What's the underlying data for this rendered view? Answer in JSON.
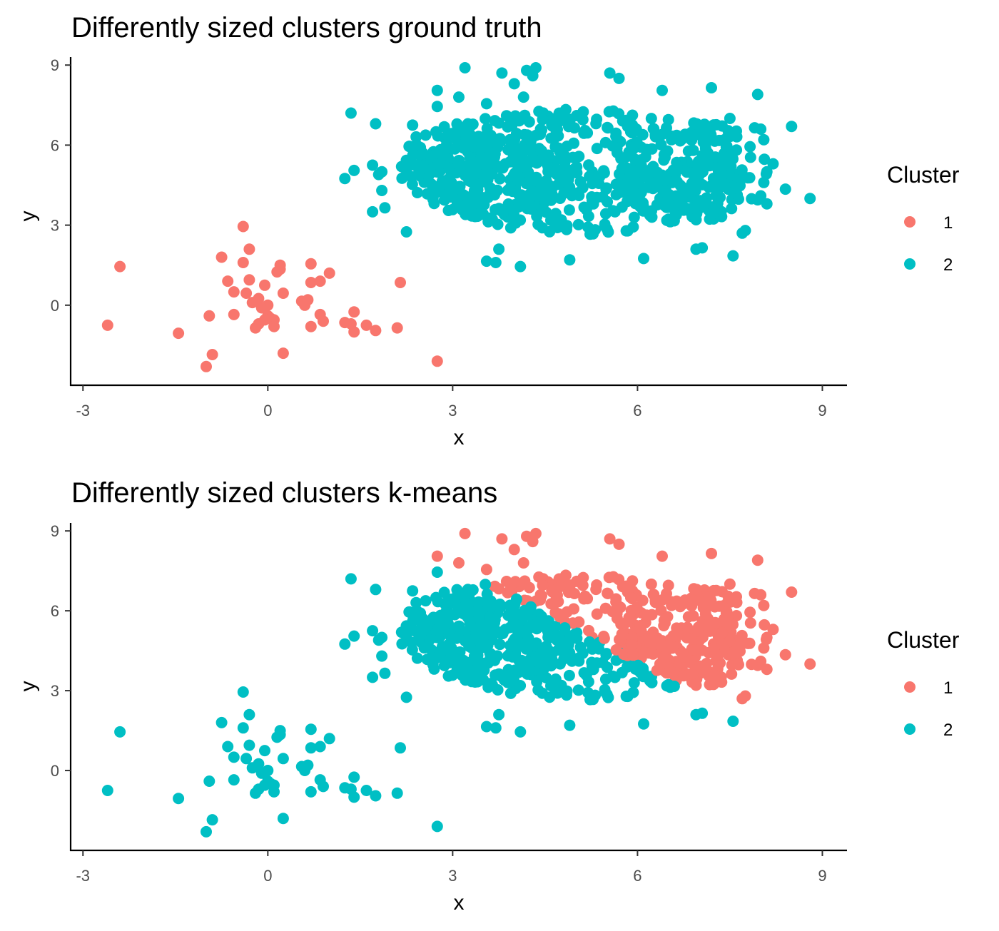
{
  "colors": {
    "cluster_1": "#F8766D",
    "cluster_2": "#00BFC4"
  },
  "chart_data": [
    {
      "type": "scatter",
      "title": "Differently sized clusters ground truth",
      "xlabel": "x",
      "ylabel": "y",
      "xlim": [
        -3.2,
        9.4
      ],
      "ylim": [
        -3.0,
        9.3
      ],
      "xticks": [
        "-3",
        "0",
        "3",
        "6",
        "9"
      ],
      "yticks": [
        "0",
        "3",
        "6",
        "9"
      ],
      "grid": false,
      "legend": {
        "title": "Cluster",
        "placement": "right",
        "entries": [
          "1",
          "2"
        ]
      },
      "assignment": "ground_truth",
      "series": [
        {
          "name": "1",
          "points": [
            [
              -2.6,
              -0.75
            ],
            [
              -2.4,
              1.45
            ],
            [
              -1.45,
              -1.05
            ],
            [
              -1.0,
              -2.3
            ],
            [
              -0.95,
              -0.4
            ],
            [
              -0.9,
              -1.85
            ],
            [
              -0.75,
              1.8
            ],
            [
              -0.65,
              0.9
            ],
            [
              -0.55,
              0.5
            ],
            [
              -0.55,
              -0.35
            ],
            [
              -0.4,
              2.95
            ],
            [
              -0.4,
              1.6
            ],
            [
              -0.35,
              0.45
            ],
            [
              -0.3,
              0.95
            ],
            [
              -0.3,
              2.1
            ],
            [
              -0.25,
              0.1
            ],
            [
              -0.2,
              -0.85
            ],
            [
              -0.15,
              -0.7
            ],
            [
              -0.15,
              0.25
            ],
            [
              -0.1,
              -0.1
            ],
            [
              -0.05,
              0.75
            ],
            [
              -0.05,
              -0.55
            ],
            [
              0.0,
              -0.4
            ],
            [
              0.0,
              0.0
            ],
            [
              0.05,
              -0.5
            ],
            [
              0.1,
              -0.55
            ],
            [
              0.1,
              -0.8
            ],
            [
              0.15,
              1.25
            ],
            [
              0.2,
              1.5
            ],
            [
              0.2,
              1.35
            ],
            [
              0.25,
              0.45
            ],
            [
              0.25,
              -1.8
            ],
            [
              0.55,
              0.15
            ],
            [
              0.6,
              0.0
            ],
            [
              0.65,
              0.2
            ],
            [
              0.7,
              1.55
            ],
            [
              0.7,
              -0.8
            ],
            [
              0.7,
              0.85
            ],
            [
              0.85,
              0.9
            ],
            [
              0.85,
              -0.35
            ],
            [
              0.9,
              -0.6
            ],
            [
              1.0,
              1.2
            ],
            [
              1.25,
              -0.65
            ],
            [
              1.35,
              -0.7
            ],
            [
              1.4,
              -0.25
            ],
            [
              1.4,
              -1.0
            ],
            [
              1.6,
              -0.75
            ],
            [
              1.75,
              -0.95
            ],
            [
              2.1,
              -0.85
            ],
            [
              2.15,
              0.85
            ],
            [
              2.75,
              -2.1
            ]
          ]
        },
        {
          "name": "2",
          "points": [
            [
              3.2,
              8.9
            ],
            [
              3.8,
              8.7
            ],
            [
              4.0,
              8.3
            ],
            [
              4.15,
              7.8
            ],
            [
              4.2,
              8.8
            ],
            [
              4.3,
              8.6
            ],
            [
              4.35,
              8.9
            ],
            [
              5.55,
              8.7
            ],
            [
              5.7,
              8.5
            ],
            [
              6.4,
              8.05
            ],
            [
              7.2,
              8.15
            ],
            [
              7.95,
              7.9
            ],
            [
              1.35,
              7.2
            ],
            [
              1.75,
              6.8
            ],
            [
              2.35,
              6.75
            ],
            [
              2.75,
              7.45
            ],
            [
              2.75,
              8.05
            ],
            [
              3.1,
              7.8
            ],
            [
              3.55,
              7.55
            ],
            [
              7.5,
              7.0
            ],
            [
              7.9,
              6.65
            ],
            [
              8.0,
              6.6
            ],
            [
              8.05,
              6.2
            ],
            [
              8.5,
              6.7
            ],
            [
              8.2,
              5.3
            ],
            [
              8.1,
              5.0
            ],
            [
              8.05,
              4.6
            ],
            [
              8.4,
              4.35
            ],
            [
              8.8,
              4.0
            ],
            [
              8.0,
              4.1
            ],
            [
              8.1,
              3.8
            ],
            [
              7.95,
              3.95
            ],
            [
              7.7,
              2.7
            ],
            [
              7.75,
              2.8
            ],
            [
              7.55,
              1.85
            ],
            [
              1.25,
              4.75
            ],
            [
              1.4,
              5.05
            ],
            [
              1.7,
              5.25
            ],
            [
              1.8,
              4.9
            ],
            [
              1.85,
              5.0
            ],
            [
              1.7,
              3.5
            ],
            [
              1.85,
              4.3
            ],
            [
              1.9,
              3.65
            ],
            [
              2.25,
              2.75
            ],
            [
              3.55,
              1.65
            ],
            [
              3.7,
              1.6
            ],
            [
              3.75,
              2.1
            ],
            [
              4.1,
              1.45
            ],
            [
              4.9,
              1.7
            ],
            [
              6.1,
              1.75
            ],
            [
              6.95,
              2.1
            ],
            [
              7.05,
              2.15
            ]
          ]
        }
      ],
      "dense_regions": [
        {
          "series": "2",
          "shape": "ellipse",
          "cx": 5.1,
          "cy": 5.0,
          "rx": 2.75,
          "ry": 2.35
        },
        {
          "series": "2",
          "shape": "ellipse",
          "cx": 3.4,
          "cy": 5.1,
          "rx": 1.3,
          "ry": 1.9
        },
        {
          "series": "2",
          "shape": "ellipse",
          "cx": 6.9,
          "cy": 5.0,
          "rx": 1.2,
          "ry": 1.9
        }
      ]
    },
    {
      "type": "scatter",
      "title": "Differently sized clusters k-means",
      "xlabel": "x",
      "ylabel": "y",
      "xlim": [
        -3.2,
        9.4
      ],
      "ylim": [
        -3.0,
        9.3
      ],
      "xticks": [
        "-3",
        "0",
        "3",
        "6",
        "9"
      ],
      "yticks": [
        "0",
        "3",
        "6",
        "9"
      ],
      "grid": false,
      "legend": {
        "title": "Cluster",
        "placement": "right",
        "entries": [
          "1",
          "2"
        ]
      },
      "assignment": "kmeans",
      "kmeans_centers": {
        "1": [
          6.5,
          6.2
        ],
        "2": [
          3.8,
          4.0
        ]
      }
    }
  ]
}
